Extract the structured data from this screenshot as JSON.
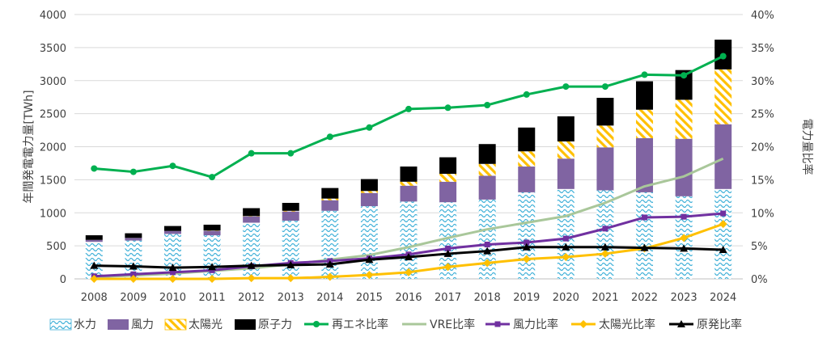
{
  "chart_data": {
    "type": "bar",
    "title": "",
    "ylabel": "年間発電電力量[TWh]",
    "y2label": "電力量比率",
    "x": [
      "2008",
      "2009",
      "2010",
      "2011",
      "2012",
      "2013",
      "2014",
      "2015",
      "2016",
      "2017",
      "2018",
      "2019",
      "2020",
      "2021",
      "2022",
      "2023",
      "2024"
    ],
    "ylim": [
      0,
      4000
    ],
    "y_ticks": [
      "0",
      "500",
      "1000",
      "1500",
      "2000",
      "2500",
      "3000",
      "3500",
      "4000"
    ],
    "y2lim": [
      0,
      40
    ],
    "y2_ticks": [
      "0%",
      "5%",
      "10%",
      "15%",
      "20%",
      "25%",
      "30%",
      "35%",
      "40%"
    ],
    "grid": true,
    "legend_position": "bottom",
    "bar_series": [
      {
        "name": "水力",
        "pattern": "waves",
        "color": "#3fb0d8",
        "values": [
          560,
          580,
          680,
          660,
          850,
          880,
          1030,
          1100,
          1170,
          1160,
          1200,
          1310,
          1360,
          1340,
          1310,
          1250,
          1360
        ]
      },
      {
        "name": "風力",
        "pattern": "solid",
        "color": "#8064a2",
        "values": [
          30,
          40,
          45,
          65,
          95,
          140,
          160,
          200,
          240,
          310,
          360,
          390,
          460,
          650,
          820,
          870,
          980
        ]
      },
      {
        "name": "太陽光",
        "pattern": "hatch",
        "color": "#ffc000",
        "values": [
          0,
          0,
          0,
          5,
          5,
          10,
          25,
          30,
          60,
          120,
          180,
          230,
          260,
          330,
          430,
          590,
          830
        ]
      },
      {
        "name": "原子力",
        "pattern": "solid",
        "color": "#000000",
        "values": [
          70,
          70,
          75,
          90,
          120,
          120,
          160,
          180,
          230,
          250,
          300,
          360,
          380,
          420,
          430,
          450,
          450
        ]
      }
    ],
    "line_series": [
      {
        "name": "再エネ比率",
        "color": "#00b050",
        "marker": "circle",
        "values": [
          16.7,
          16.2,
          17.1,
          15.4,
          19.0,
          19.0,
          21.5,
          22.9,
          25.7,
          25.9,
          26.3,
          27.9,
          29.1,
          29.1,
          30.9,
          30.8,
          33.7
        ]
      },
      {
        "name": "VRE比率",
        "color": "#a9c79a",
        "marker": "none",
        "values": [
          0.3,
          0.5,
          0.8,
          1.2,
          1.6,
          2.2,
          2.9,
          3.6,
          4.8,
          6.2,
          7.5,
          8.5,
          9.5,
          11.5,
          14.0,
          15.5,
          18.2
        ]
      },
      {
        "name": "風力比率",
        "color": "#7030a0",
        "marker": "square",
        "values": [
          0.4,
          0.7,
          1.0,
          1.3,
          1.9,
          2.4,
          2.7,
          3.1,
          3.7,
          4.6,
          5.2,
          5.5,
          6.1,
          7.6,
          9.3,
          9.4,
          9.9
        ]
      },
      {
        "name": "太陽光比率",
        "color": "#ffc000",
        "marker": "diamond",
        "values": [
          0.0,
          0.0,
          0.0,
          0.0,
          0.1,
          0.1,
          0.3,
          0.6,
          1.0,
          1.8,
          2.4,
          3.0,
          3.3,
          3.8,
          4.6,
          6.2,
          8.3
        ]
      },
      {
        "name": "原発比率",
        "color": "#000000",
        "marker": "triangle",
        "values": [
          2.0,
          1.9,
          1.7,
          1.8,
          2.0,
          2.1,
          2.2,
          2.9,
          3.3,
          3.8,
          4.2,
          4.8,
          4.8,
          4.8,
          4.7,
          4.6,
          4.4
        ]
      }
    ]
  }
}
